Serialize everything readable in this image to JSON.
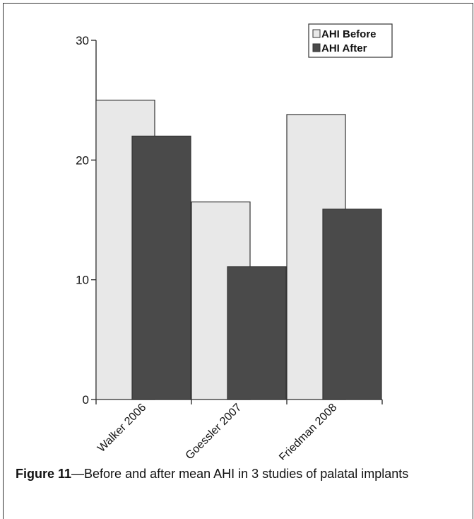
{
  "caption": {
    "label": "Figure 11",
    "dash": "—",
    "text": "Before and after mean AHI in 3 studies of palatal implants"
  },
  "chart_data": {
    "type": "bar",
    "categories": [
      "Walker 2006",
      "Goessler 2007",
      "Friedman 2008"
    ],
    "series": [
      {
        "name": "AHI Before",
        "values": [
          25,
          16.5,
          23.8
        ],
        "color": "#e8e8e8"
      },
      {
        "name": "AHI After",
        "values": [
          22,
          11.1,
          15.9
        ],
        "color": "#4a4a4a"
      }
    ],
    "ylim": [
      0,
      30
    ],
    "yticks": [
      0,
      10,
      20,
      30
    ],
    "legend_position": "top-right",
    "grid": false
  }
}
